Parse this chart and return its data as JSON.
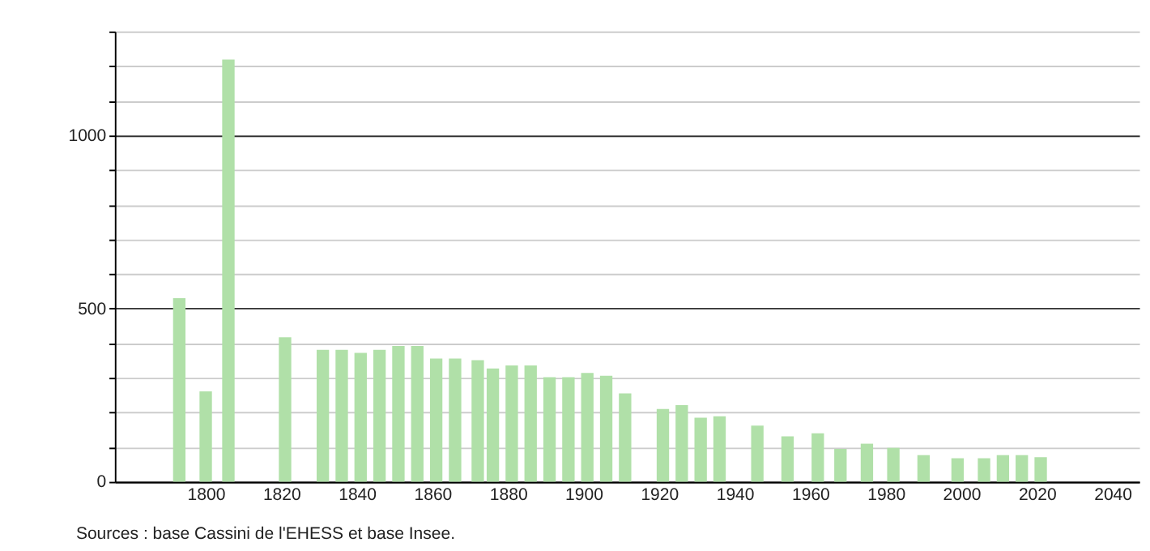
{
  "chart_data": {
    "type": "bar",
    "x": [
      1793,
      1800,
      1806,
      1821,
      1831,
      1836,
      1841,
      1846,
      1851,
      1856,
      1861,
      1866,
      1872,
      1876,
      1881,
      1886,
      1891,
      1896,
      1901,
      1906,
      1911,
      1921,
      1926,
      1931,
      1936,
      1946,
      1954,
      1962,
      1968,
      1975,
      1982,
      1990,
      1999,
      2006,
      2011,
      2016,
      2021
    ],
    "values": [
      530,
      261,
      1219,
      417,
      381,
      381,
      372,
      381,
      392,
      392,
      356,
      356,
      351,
      327,
      336,
      336,
      302,
      302,
      314,
      306,
      255,
      210,
      221,
      185,
      189,
      162,
      131,
      140,
      95,
      110,
      98,
      77,
      68,
      68,
      77,
      77,
      71
    ],
    "color": "#b0e0a8",
    "xlim": [
      1778,
      2045
    ],
    "xticks": [
      1800,
      1820,
      1840,
      1860,
      1880,
      1900,
      1920,
      1940,
      1960,
      1980,
      2000,
      2020,
      2040
    ],
    "ylim": [
      0,
      1300
    ],
    "yticks": [
      0,
      {
        "value": 100,
        "label": null
      },
      {
        "value": 200,
        "label": null
      },
      {
        "value": 300,
        "label": null
      },
      {
        "value": 400,
        "label": null
      },
      500,
      {
        "value": 600,
        "label": null
      },
      {
        "value": 700,
        "label": null
      },
      {
        "value": 800,
        "label": null
      },
      {
        "value": 900,
        "label": null
      },
      1000,
      {
        "value": 1100,
        "label": null
      },
      {
        "value": 1200,
        "label": null
      },
      {
        "value": 1300,
        "label": null
      }
    ],
    "grid": "y",
    "annotations": [
      "Sources : base Cassini de l'EHESS et base Insee."
    ]
  }
}
